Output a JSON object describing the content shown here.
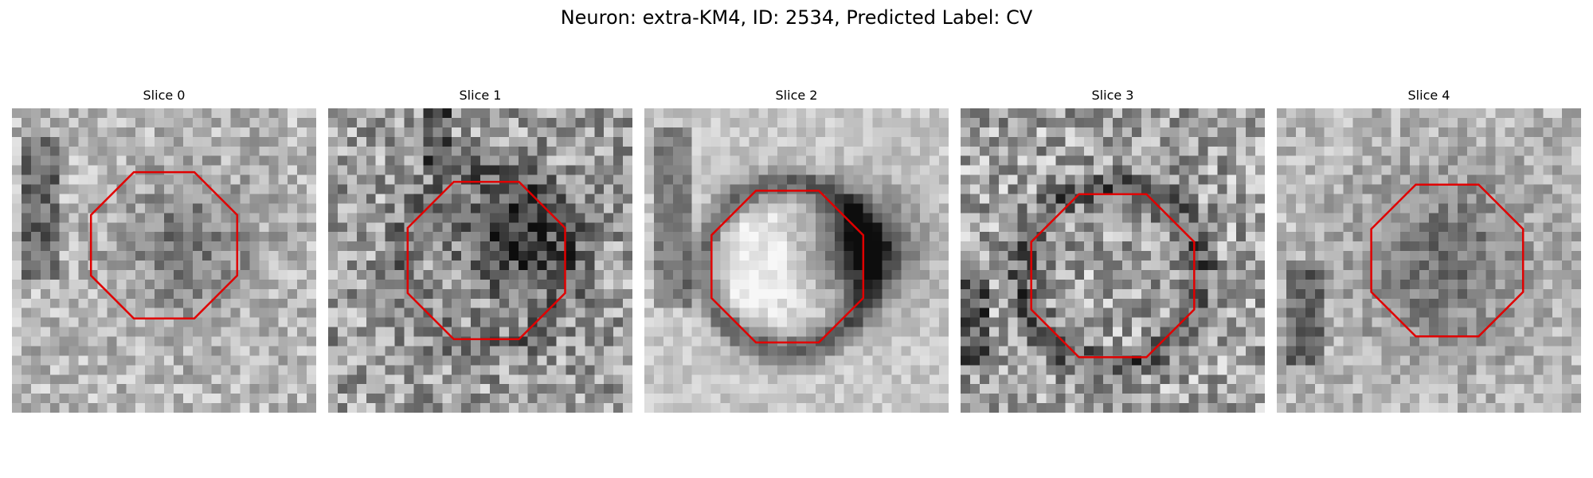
{
  "title": "Neuron: extra-KM4, ID: 2534, Predicted Label: CV",
  "contour_color": "#e00000",
  "panels": [
    {
      "label": "Slice 0"
    },
    {
      "label": "Slice 1"
    },
    {
      "label": "Slice 2"
    },
    {
      "label": "Slice 3"
    },
    {
      "label": "Slice 4"
    }
  ]
}
